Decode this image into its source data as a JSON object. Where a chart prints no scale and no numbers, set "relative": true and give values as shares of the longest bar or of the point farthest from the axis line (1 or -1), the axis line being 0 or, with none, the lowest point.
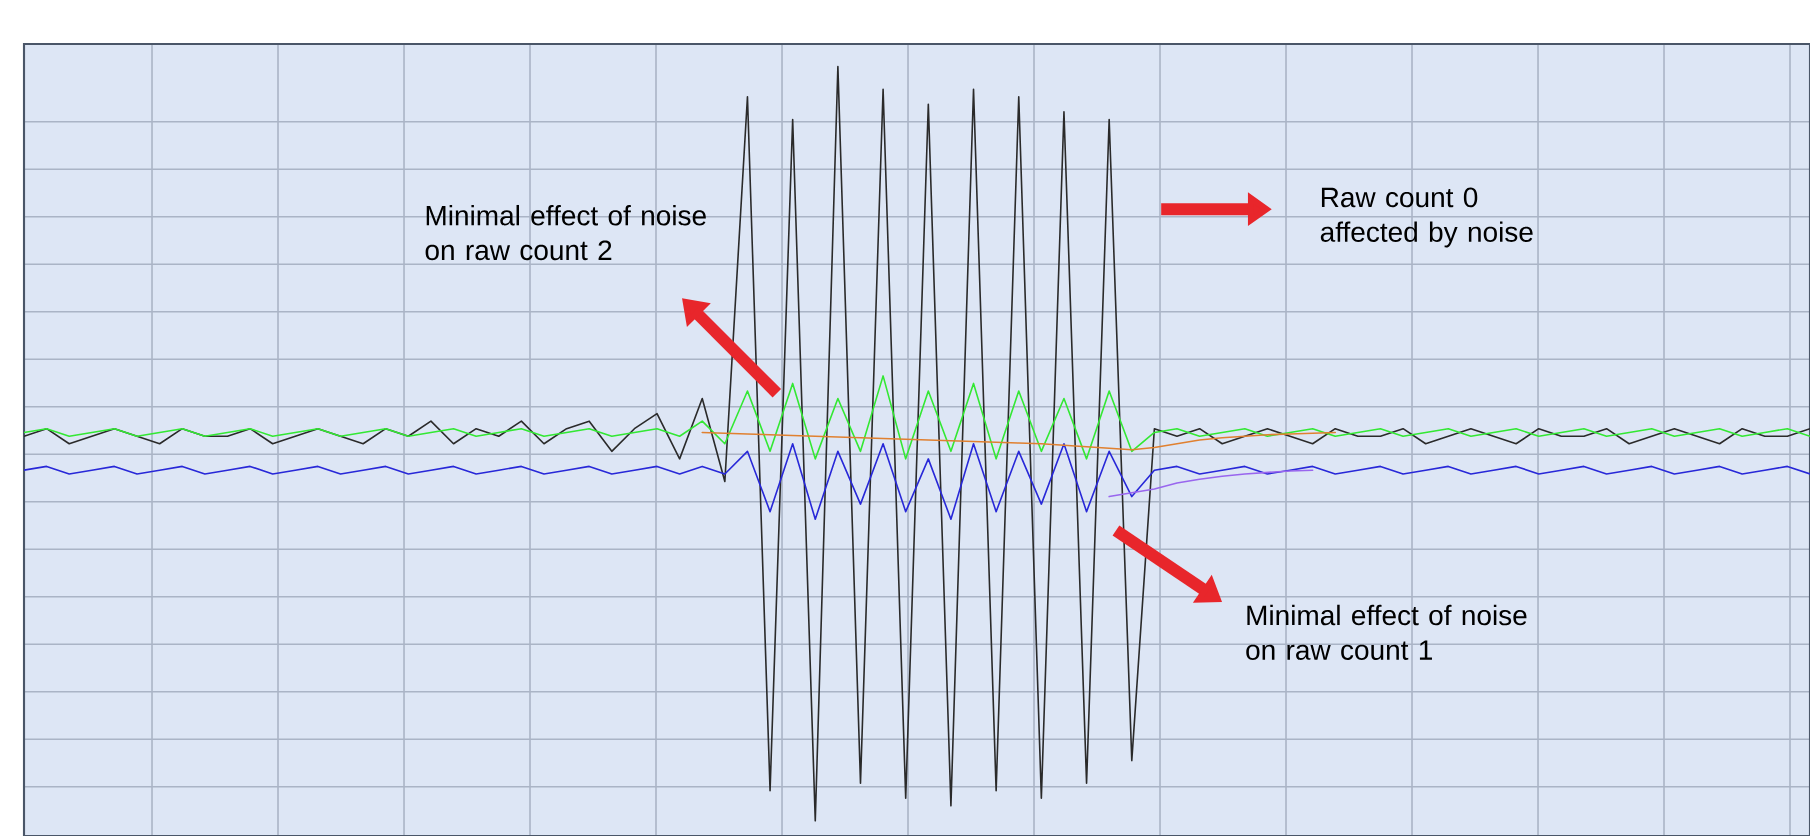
{
  "chart_data": {
    "type": "line",
    "relative": true,
    "grid": true,
    "tick_labels": false,
    "categories": [
      null,
      null,
      null,
      null,
      null,
      null,
      null,
      null,
      null,
      null,
      null,
      null,
      null,
      null,
      null,
      null,
      null,
      null,
      null,
      null,
      null,
      null,
      null,
      null,
      null,
      null,
      null,
      null,
      null,
      null,
      null,
      null,
      null,
      null,
      null,
      null,
      null,
      null,
      null,
      null,
      null,
      null,
      null,
      null,
      null,
      null,
      null,
      null,
      null,
      null,
      null,
      null,
      null,
      null,
      null,
      null,
      null,
      null,
      null,
      null,
      null,
      null,
      null,
      null,
      null,
      null,
      null,
      null,
      null,
      null,
      null,
      null,
      null,
      null,
      null,
      null,
      null,
      null,
      null,
      null
    ],
    "series": [
      {
        "color": "#2a2a2a",
        "values": [
          0.51,
          0.52,
          0.5,
          0.51,
          0.52,
          0.51,
          0.5,
          0.52,
          0.51,
          0.51,
          0.52,
          0.5,
          0.51,
          0.52,
          0.51,
          0.5,
          0.52,
          0.51,
          0.53,
          0.5,
          0.52,
          0.51,
          0.53,
          0.5,
          0.52,
          0.53,
          0.49,
          0.52,
          0.54,
          0.48,
          0.56,
          0.45,
          0.96,
          0.04,
          0.93,
          0.0,
          1.0,
          0.05,
          0.97,
          0.03,
          0.95,
          0.02,
          0.97,
          0.04,
          0.96,
          0.03,
          0.94,
          0.05,
          0.93,
          0.08,
          0.52,
          0.51,
          0.52,
          0.5,
          0.51,
          0.52,
          0.51,
          0.5,
          0.52,
          0.51,
          0.51,
          0.52,
          0.5,
          0.51,
          0.52,
          0.51,
          0.5,
          0.52,
          0.51,
          0.51,
          0.52,
          0.5,
          0.51,
          0.52,
          0.51,
          0.5,
          0.52,
          0.51,
          0.51,
          0.52
        ]
      },
      {
        "color": "#33e833",
        "values": [
          0.515,
          0.52,
          0.51,
          0.515,
          0.52,
          0.51,
          0.515,
          0.52,
          0.51,
          0.515,
          0.52,
          0.51,
          0.515,
          0.52,
          0.51,
          0.515,
          0.52,
          0.51,
          0.515,
          0.52,
          0.51,
          0.515,
          0.52,
          0.51,
          0.515,
          0.52,
          0.51,
          0.515,
          0.52,
          0.51,
          0.53,
          0.5,
          0.57,
          0.49,
          0.58,
          0.48,
          0.56,
          0.49,
          0.59,
          0.48,
          0.57,
          0.49,
          0.58,
          0.48,
          0.57,
          0.49,
          0.56,
          0.48,
          0.57,
          0.49,
          0.515,
          0.52,
          0.51,
          0.515,
          0.52,
          0.51,
          0.515,
          0.52,
          0.51,
          0.515,
          0.52,
          0.51,
          0.515,
          0.52,
          0.51,
          0.515,
          0.52,
          0.51,
          0.515,
          0.52,
          0.51,
          0.515,
          0.52,
          0.51,
          0.515,
          0.52,
          0.51,
          0.515,
          0.52,
          0.51
        ]
      },
      {
        "color": "#2828d8",
        "values": [
          0.465,
          0.47,
          0.46,
          0.465,
          0.47,
          0.46,
          0.465,
          0.47,
          0.46,
          0.465,
          0.47,
          0.46,
          0.465,
          0.47,
          0.46,
          0.465,
          0.47,
          0.46,
          0.465,
          0.47,
          0.46,
          0.465,
          0.47,
          0.46,
          0.465,
          0.47,
          0.46,
          0.465,
          0.47,
          0.46,
          0.47,
          0.46,
          0.49,
          0.41,
          0.5,
          0.4,
          0.49,
          0.42,
          0.5,
          0.41,
          0.48,
          0.4,
          0.5,
          0.41,
          0.49,
          0.42,
          0.5,
          0.41,
          0.49,
          0.43,
          0.465,
          0.47,
          0.46,
          0.465,
          0.47,
          0.46,
          0.465,
          0.47,
          0.46,
          0.465,
          0.47,
          0.46,
          0.465,
          0.47,
          0.46,
          0.465,
          0.47,
          0.46,
          0.465,
          0.47,
          0.46,
          0.465,
          0.47,
          0.46,
          0.465,
          0.47,
          0.46,
          0.465,
          0.47,
          0.46
        ]
      },
      {
        "color": "#e08030",
        "values": [
          null,
          null,
          null,
          null,
          null,
          null,
          null,
          null,
          null,
          null,
          null,
          null,
          null,
          null,
          null,
          null,
          null,
          null,
          null,
          null,
          null,
          null,
          null,
          null,
          null,
          null,
          null,
          null,
          null,
          null,
          0.515,
          0.514,
          0.513,
          0.512,
          0.511,
          0.51,
          0.509,
          0.508,
          0.507,
          0.506,
          0.505,
          0.504,
          0.503,
          0.502,
          0.501,
          0.5,
          0.498,
          0.496,
          0.494,
          0.492,
          0.495,
          0.5,
          0.505,
          0.508,
          0.51,
          0.512,
          0.513,
          0.514,
          0.515,
          null,
          null,
          null,
          null,
          null,
          null,
          null,
          null,
          null,
          null,
          null,
          null,
          null,
          null,
          null,
          null,
          null,
          null,
          null,
          null,
          null
        ]
      },
      {
        "color": "#9966ee",
        "values": [
          null,
          null,
          null,
          null,
          null,
          null,
          null,
          null,
          null,
          null,
          null,
          null,
          null,
          null,
          null,
          null,
          null,
          null,
          null,
          null,
          null,
          null,
          null,
          null,
          null,
          null,
          null,
          null,
          null,
          null,
          null,
          null,
          null,
          null,
          null,
          null,
          null,
          null,
          null,
          null,
          null,
          null,
          null,
          null,
          null,
          null,
          null,
          null,
          0.43,
          0.435,
          0.44,
          0.448,
          0.453,
          0.457,
          0.46,
          0.462,
          0.464,
          0.465,
          null,
          null,
          null,
          null,
          null,
          null,
          null,
          null,
          null,
          null,
          null,
          null,
          null,
          null,
          null,
          null,
          null,
          null,
          null,
          null,
          null,
          null
        ]
      }
    ],
    "annotations": [
      "Minimal effect of noise on raw count 2",
      "Raw count 0 affected by noise",
      "Minimal effect of noise on raw count 1"
    ]
  }
}
